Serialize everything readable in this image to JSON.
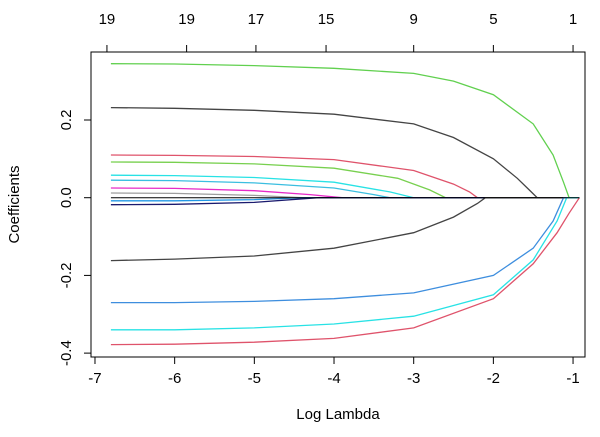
{
  "chart_data": {
    "type": "line",
    "title": "",
    "xlabel": "Log Lambda",
    "ylabel": "Coefficients",
    "xlim": [
      -7.05,
      -0.85
    ],
    "ylim": [
      -0.41,
      0.375
    ],
    "x_ticks": [
      -7,
      -6,
      -5,
      -4,
      -3,
      -2,
      -1
    ],
    "x_tick_labels": [
      "-7",
      "-6",
      "-5",
      "-4",
      "-3",
      "-2",
      "-1"
    ],
    "y_ticks": [
      -0.4,
      -0.2,
      0.0,
      0.2
    ],
    "y_tick_labels": [
      "-0.4",
      "-0.2",
      "0.0",
      "0.2"
    ],
    "top_ticks": [
      -6.85,
      -5.85,
      -4.98,
      -4.1,
      -3.0,
      -2.0,
      -1.0
    ],
    "top_tick_labels": [
      "19",
      "19",
      "17",
      "15",
      "9",
      "5",
      "1"
    ],
    "grid": false,
    "series": [
      {
        "name": "path-green-top",
        "color": "#61D04F",
        "x": [
          -6.8,
          -6,
          -5,
          -4,
          -3,
          -2.5,
          -2,
          -1.5,
          -1.25,
          -1.12,
          -1.05,
          -0.92
        ],
        "y": [
          0.345,
          0.344,
          0.34,
          0.333,
          0.32,
          0.3,
          0.265,
          0.19,
          0.11,
          0.04,
          0,
          0
        ]
      },
      {
        "name": "path-black-upper",
        "color": "#444444",
        "x": [
          -6.8,
          -6,
          -5,
          -4,
          -3,
          -2.5,
          -2,
          -1.7,
          -1.55,
          -1.45,
          -0.92
        ],
        "y": [
          0.232,
          0.23,
          0.225,
          0.215,
          0.19,
          0.155,
          0.1,
          0.05,
          0.02,
          0,
          0
        ]
      },
      {
        "name": "path-magenta",
        "color": "#DF536B",
        "x": [
          -6.8,
          -6,
          -5,
          -4,
          -3,
          -2.5,
          -2.3,
          -2.2,
          -0.92
        ],
        "y": [
          0.11,
          0.109,
          0.106,
          0.098,
          0.07,
          0.035,
          0.015,
          0,
          0
        ]
      },
      {
        "name": "path-green-mid",
        "color": "#78D04F",
        "x": [
          -6.8,
          -6,
          -5,
          -4,
          -3.2,
          -2.8,
          -2.6,
          -0.92
        ],
        "y": [
          0.092,
          0.091,
          0.087,
          0.076,
          0.05,
          0.02,
          0,
          0
        ]
      },
      {
        "name": "path-cyan-a",
        "color": "#28E2E5",
        "x": [
          -6.8,
          -6,
          -5,
          -4,
          -3.3,
          -3.0,
          -0.92
        ],
        "y": [
          0.058,
          0.057,
          0.052,
          0.04,
          0.015,
          0,
          0
        ]
      },
      {
        "name": "path-cyan-b",
        "color": "#3BBEE0",
        "x": [
          -6.8,
          -6,
          -5,
          -4,
          -3.5,
          -3.3,
          -0.92
        ],
        "y": [
          0.045,
          0.044,
          0.038,
          0.025,
          0.008,
          0,
          0
        ]
      },
      {
        "name": "path-pink",
        "color": "#E62BC8",
        "x": [
          -6.8,
          -6,
          -5,
          -4.3,
          -3.9,
          -0.92
        ],
        "y": [
          0.025,
          0.024,
          0.018,
          0.008,
          0,
          0
        ]
      },
      {
        "name": "path-gray",
        "color": "#9E9E9E",
        "x": [
          -6.8,
          -6,
          -5,
          -4.4,
          -0.92
        ],
        "y": [
          0.012,
          0.011,
          0.006,
          0,
          0
        ]
      },
      {
        "name": "path-blue-dark",
        "color": "#2297E6",
        "x": [
          -6.8,
          -6,
          -5,
          -4.4,
          -0.92
        ],
        "y": [
          -0.008,
          -0.008,
          -0.005,
          0,
          0
        ]
      },
      {
        "name": "path-navy",
        "color": "#1A1A6E",
        "x": [
          -6.8,
          -6,
          -5,
          -4.2,
          -0.92
        ],
        "y": [
          -0.018,
          -0.017,
          -0.012,
          0,
          0
        ]
      },
      {
        "name": "path-black-lower",
        "color": "#444444",
        "x": [
          -6.8,
          -6,
          -5,
          -4,
          -3,
          -2.5,
          -2.2,
          -2.1,
          -0.92
        ],
        "y": [
          -0.162,
          -0.158,
          -0.15,
          -0.13,
          -0.09,
          -0.05,
          -0.015,
          0,
          0
        ]
      },
      {
        "name": "path-blue",
        "color": "#3E8EDE",
        "x": [
          -6.8,
          -6,
          -5,
          -4,
          -3,
          -2,
          -1.5,
          -1.25,
          -1.12,
          -0.92
        ],
        "y": [
          -0.27,
          -0.27,
          -0.267,
          -0.26,
          -0.245,
          -0.2,
          -0.13,
          -0.06,
          0,
          0
        ]
      },
      {
        "name": "path-cyan-lower",
        "color": "#28E2E5",
        "x": [
          -6.8,
          -6,
          -5,
          -4,
          -3,
          -2,
          -1.5,
          -1.2,
          -1.08,
          -0.92
        ],
        "y": [
          -0.34,
          -0.34,
          -0.335,
          -0.325,
          -0.305,
          -0.25,
          -0.16,
          -0.06,
          0,
          0
        ]
      },
      {
        "name": "path-red",
        "color": "#DF536B",
        "x": [
          -6.8,
          -6,
          -5,
          -4,
          -3,
          -2,
          -1.5,
          -1.2,
          -1.05,
          -0.92
        ],
        "y": [
          -0.378,
          -0.377,
          -0.372,
          -0.362,
          -0.335,
          -0.26,
          -0.17,
          -0.09,
          -0.04,
          0
        ]
      }
    ]
  }
}
